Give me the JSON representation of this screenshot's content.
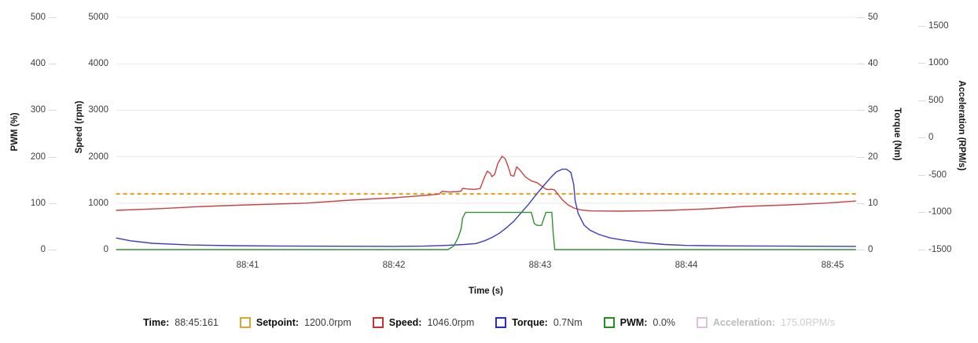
{
  "chart_data": {
    "type": "line",
    "title": "",
    "xlabel": "Time (s)",
    "x_domain": [
      40.1,
      45.16
    ],
    "x_tick_values": [
      41,
      42,
      43,
      44,
      45
    ],
    "x_ticks": [
      "88:41",
      "88:42",
      "88:43",
      "88:44",
      "88:45"
    ],
    "grid": "horizontal",
    "legend_position": "bottom",
    "axes": [
      {
        "id": "pwm",
        "title": "PWM (%)",
        "side": "left",
        "min": 0,
        "max": 500,
        "ticks": [
          0,
          100,
          200,
          300,
          400,
          500
        ]
      },
      {
        "id": "speed",
        "title": "Speed (rpm)",
        "side": "left",
        "min": 0,
        "max": 5000,
        "ticks": [
          0,
          1000,
          2000,
          3000,
          4000,
          5000
        ]
      },
      {
        "id": "torque",
        "title": "Torque (Nm)",
        "side": "right",
        "min": 0,
        "max": 50,
        "ticks": [
          0,
          10,
          20,
          30,
          40,
          50
        ]
      },
      {
        "id": "accel",
        "title": "Acceleration (RPM/s)",
        "side": "right",
        "min": -1500,
        "max": 1615,
        "ticks": [
          -1500,
          -1000,
          -500,
          0,
          500,
          1000,
          1500
        ]
      }
    ],
    "series": [
      {
        "name": "Setpoint",
        "axis": "speed",
        "color": "#e0a32e",
        "style": "dashed",
        "width": 2.2,
        "points": [
          [
            40.1,
            1200
          ],
          [
            45.16,
            1200
          ]
        ]
      },
      {
        "name": "Speed",
        "axis": "speed",
        "color": "#c94242",
        "style": "solid",
        "width": 1.4,
        "points": [
          [
            40.1,
            845
          ],
          [
            40.4,
            882
          ],
          [
            40.7,
            929
          ],
          [
            41.0,
            963
          ],
          [
            41.4,
            1000
          ],
          [
            41.7,
            1064
          ],
          [
            42.0,
            1115
          ],
          [
            42.2,
            1163
          ],
          [
            42.31,
            1195
          ],
          [
            42.33,
            1255
          ],
          [
            42.38,
            1240
          ],
          [
            42.44,
            1250
          ],
          [
            42.46,
            1260
          ],
          [
            42.47,
            1318
          ],
          [
            42.5,
            1305
          ],
          [
            42.55,
            1295
          ],
          [
            42.59,
            1315
          ],
          [
            42.62,
            1560
          ],
          [
            42.64,
            1690
          ],
          [
            42.66,
            1640
          ],
          [
            42.67,
            1570
          ],
          [
            42.69,
            1620
          ],
          [
            42.71,
            1850
          ],
          [
            42.74,
            2010
          ],
          [
            42.76,
            1960
          ],
          [
            42.78,
            1800
          ],
          [
            42.8,
            1600
          ],
          [
            42.82,
            1580
          ],
          [
            42.84,
            1780
          ],
          [
            42.86,
            1720
          ],
          [
            42.9,
            1560
          ],
          [
            42.94,
            1480
          ],
          [
            42.98,
            1440
          ],
          [
            43.01,
            1370
          ],
          [
            43.04,
            1300
          ],
          [
            43.06,
            1290
          ],
          [
            43.08,
            1300
          ],
          [
            43.1,
            1280
          ],
          [
            43.12,
            1200
          ],
          [
            43.15,
            1080
          ],
          [
            43.19,
            965
          ],
          [
            43.23,
            895
          ],
          [
            43.28,
            852
          ],
          [
            43.35,
            832
          ],
          [
            43.55,
            827
          ],
          [
            43.75,
            835
          ],
          [
            43.88,
            845
          ],
          [
            44.15,
            878
          ],
          [
            44.4,
            929
          ],
          [
            44.7,
            963
          ],
          [
            44.95,
            1000
          ],
          [
            45.16,
            1046
          ]
        ]
      },
      {
        "name": "Torque",
        "axis": "torque",
        "color": "#3c3cc0",
        "style": "solid",
        "width": 1.4,
        "points": [
          [
            40.1,
            2.5
          ],
          [
            40.2,
            1.9
          ],
          [
            40.35,
            1.35
          ],
          [
            40.6,
            1.0
          ],
          [
            40.9,
            0.85
          ],
          [
            41.2,
            0.78
          ],
          [
            41.6,
            0.72
          ],
          [
            42.0,
            0.7
          ],
          [
            42.2,
            0.75
          ],
          [
            42.35,
            0.9
          ],
          [
            42.48,
            1.1
          ],
          [
            42.56,
            1.3
          ],
          [
            42.62,
            1.9
          ],
          [
            42.67,
            2.6
          ],
          [
            42.72,
            3.5
          ],
          [
            42.77,
            4.7
          ],
          [
            42.82,
            6.1
          ],
          [
            42.87,
            7.9
          ],
          [
            42.92,
            9.7
          ],
          [
            42.97,
            11.7
          ],
          [
            43.02,
            13.6
          ],
          [
            43.07,
            15.4
          ],
          [
            43.11,
            16.7
          ],
          [
            43.15,
            17.3
          ],
          [
            43.18,
            17.3
          ],
          [
            43.21,
            16.6
          ],
          [
            43.23,
            14.0
          ],
          [
            43.24,
            10.5
          ],
          [
            43.26,
            7.8
          ],
          [
            43.3,
            5.3
          ],
          [
            43.34,
            4.2
          ],
          [
            43.4,
            3.3
          ],
          [
            43.48,
            2.5
          ],
          [
            43.58,
            2.0
          ],
          [
            43.7,
            1.5
          ],
          [
            43.85,
            1.1
          ],
          [
            44.0,
            0.9
          ],
          [
            44.3,
            0.8
          ],
          [
            44.7,
            0.75
          ],
          [
            45.16,
            0.7
          ]
        ]
      },
      {
        "name": "PWM",
        "axis": "pwm",
        "color": "#2f9133",
        "style": "solid",
        "width": 1.4,
        "points": [
          [
            40.1,
            0
          ],
          [
            42.37,
            0
          ],
          [
            42.41,
            8
          ],
          [
            42.44,
            26
          ],
          [
            42.46,
            45
          ],
          [
            42.47,
            68
          ],
          [
            42.49,
            80
          ],
          [
            42.94,
            80
          ],
          [
            42.96,
            56
          ],
          [
            42.98,
            52
          ],
          [
            43.01,
            52
          ],
          [
            43.02,
            62
          ],
          [
            43.04,
            80
          ],
          [
            43.08,
            80
          ],
          [
            43.09,
            35
          ],
          [
            43.1,
            0
          ],
          [
            45.16,
            0
          ]
        ]
      }
    ]
  },
  "legend": {
    "items": [
      {
        "key": "time",
        "label": "Time:",
        "value": "88:45:161",
        "swatch": null,
        "disabled": false
      },
      {
        "key": "setpoint",
        "label": "Setpoint:",
        "value": "1200.0rpm",
        "swatch": "#d9a62e",
        "disabled": false
      },
      {
        "key": "speed",
        "label": "Speed:",
        "value": "1046.0rpm",
        "swatch": "#cc2f2f",
        "disabled": false
      },
      {
        "key": "torque",
        "label": "Torque:",
        "value": "0.7Nm",
        "swatch": "#2b2bcc",
        "disabled": false
      },
      {
        "key": "pwm",
        "label": "PWM:",
        "value": "0.0%",
        "swatch": "#1f8f1f",
        "disabled": false
      },
      {
        "key": "acceleration",
        "label": "Acceleration:",
        "value": "175.0RPM/s",
        "swatch": "#dcc2dc",
        "disabled": true
      }
    ]
  },
  "colors": {
    "grid": "#e9e9e9",
    "tick_text": "#3f3f3f",
    "title_text": "#161616"
  }
}
